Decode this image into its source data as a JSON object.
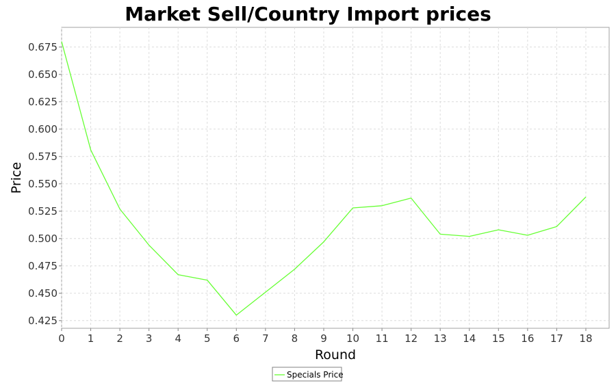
{
  "chart_data": {
    "type": "line",
    "title": "Market Sell/Country Import prices",
    "xlabel": "Round",
    "ylabel": "Price",
    "x": [
      0,
      1,
      2,
      3,
      4,
      5,
      6,
      7,
      8,
      9,
      10,
      11,
      12,
      13,
      14,
      15,
      16,
      17,
      18
    ],
    "x_ticks": [
      "0",
      "1",
      "2",
      "3",
      "4",
      "5",
      "6",
      "7",
      "8",
      "9",
      "10",
      "11",
      "12",
      "13",
      "14",
      "15",
      "16",
      "17",
      "18"
    ],
    "xlim": [
      0,
      18.8
    ],
    "ylim": [
      0.418,
      0.693
    ],
    "y_ticks": [
      0.425,
      0.45,
      0.475,
      0.5,
      0.525,
      0.55,
      0.575,
      0.6,
      0.625,
      0.65,
      0.675
    ],
    "y_tick_labels": [
      "0.425",
      "0.450",
      "0.475",
      "0.500",
      "0.525",
      "0.550",
      "0.575",
      "0.600",
      "0.625",
      "0.650",
      "0.675"
    ],
    "grid": true,
    "legend_position": "bottom-center",
    "series": [
      {
        "name": "Specials Price",
        "color": "#66ff33",
        "values": [
          0.68,
          0.581,
          0.527,
          0.494,
          0.467,
          0.462,
          0.43,
          0.451,
          0.472,
          0.497,
          0.528,
          0.53,
          0.537,
          0.504,
          0.502,
          0.508,
          0.503,
          0.511,
          0.538
        ]
      }
    ]
  }
}
